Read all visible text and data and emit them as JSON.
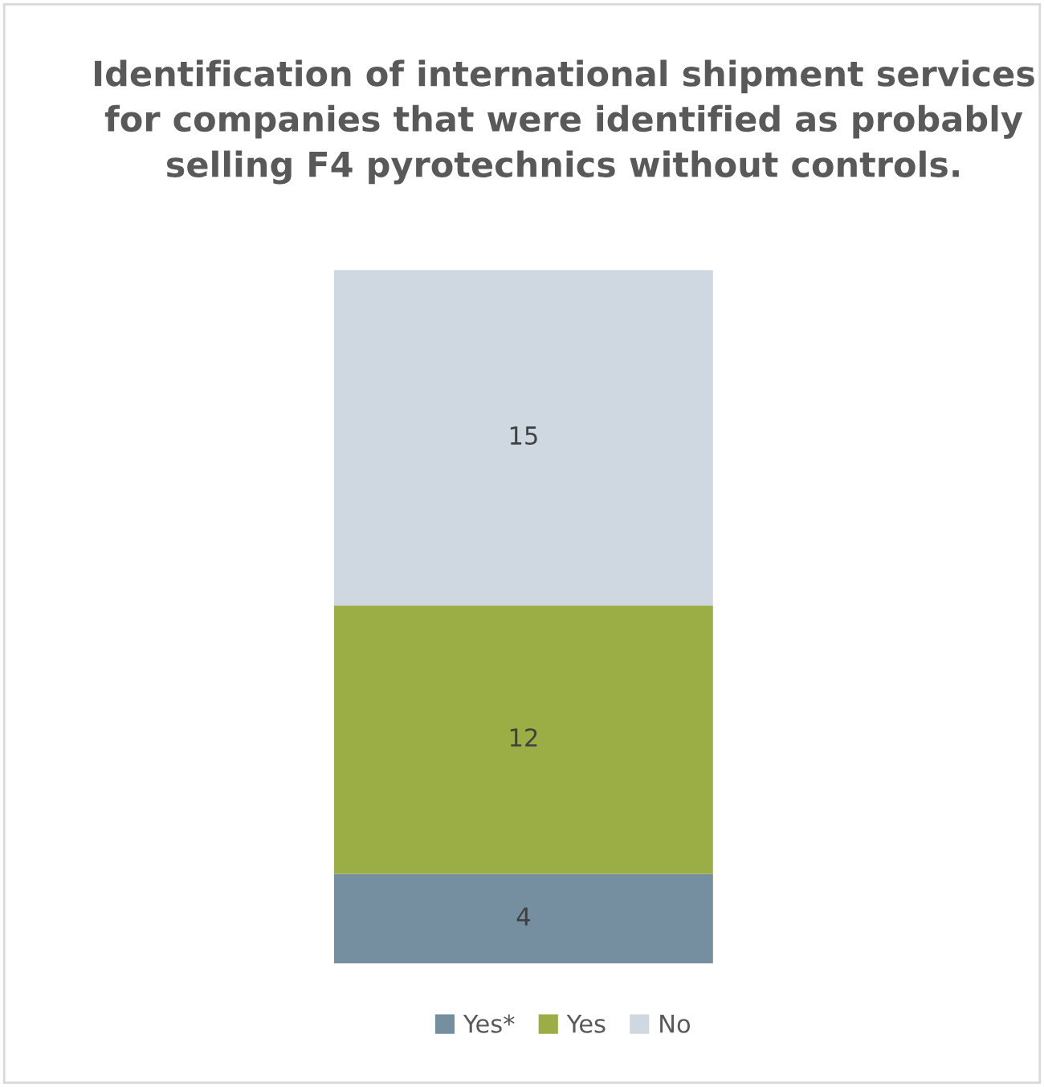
{
  "chart_data": {
    "type": "bar",
    "title": "Identification of international shipment services for companies that were identified as probably selling F4 pyrotechnics without controls.",
    "categories": [
      null
    ],
    "stacked": true,
    "data_labels": true,
    "legend": "bottom",
    "grid": false,
    "tick_labels": false,
    "series": [
      {
        "name": "Yes*",
        "color": "#758fa0",
        "values": [
          4
        ]
      },
      {
        "name": "Yes",
        "color": "#9bad45",
        "values": [
          12
        ]
      },
      {
        "name": "No",
        "color": "#cfd8e0",
        "values": [
          15
        ]
      }
    ]
  }
}
